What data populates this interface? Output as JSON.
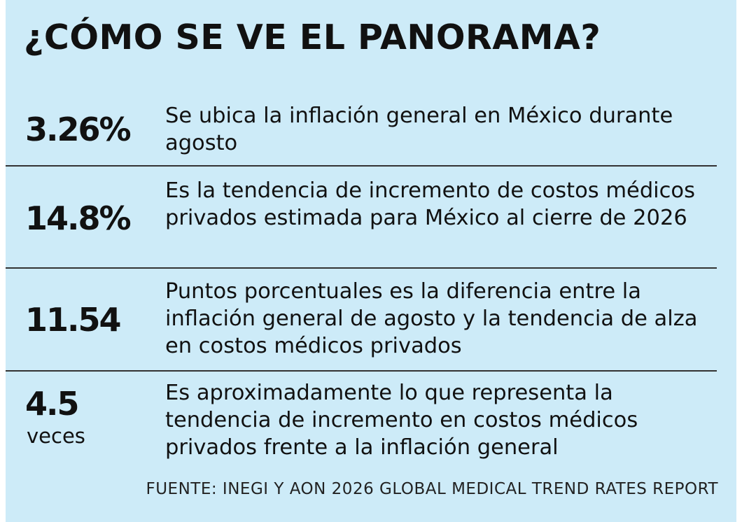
{
  "title": "¿CÓMO SE VE EL PANORAMA?",
  "stats": [
    {
      "figure": "3.26%",
      "unit": "",
      "description": "Se ubica la inflación general en México durante agosto"
    },
    {
      "figure": "14.8%",
      "unit": "",
      "description": "Es la tendencia de incremento de costos médicos privados estimada para México al cierre de 2026"
    },
    {
      "figure": "11.54",
      "unit": "",
      "description": "Puntos porcentuales es la diferencia entre la inflación general de agosto y la tendencia de alza en costos médicos privados"
    },
    {
      "figure": "4.5",
      "unit": "veces",
      "description": "Es aproximadamente lo que representa la tendencia de incremento en costos médicos privados frente a la inflación general"
    }
  ],
  "source": "FUENTE: INEGI Y AON 2026 GLOBAL MEDICAL TREND RATES REPORT",
  "colors": {
    "background": "#cdebf8",
    "text": "#111111",
    "divider": "#333333"
  }
}
